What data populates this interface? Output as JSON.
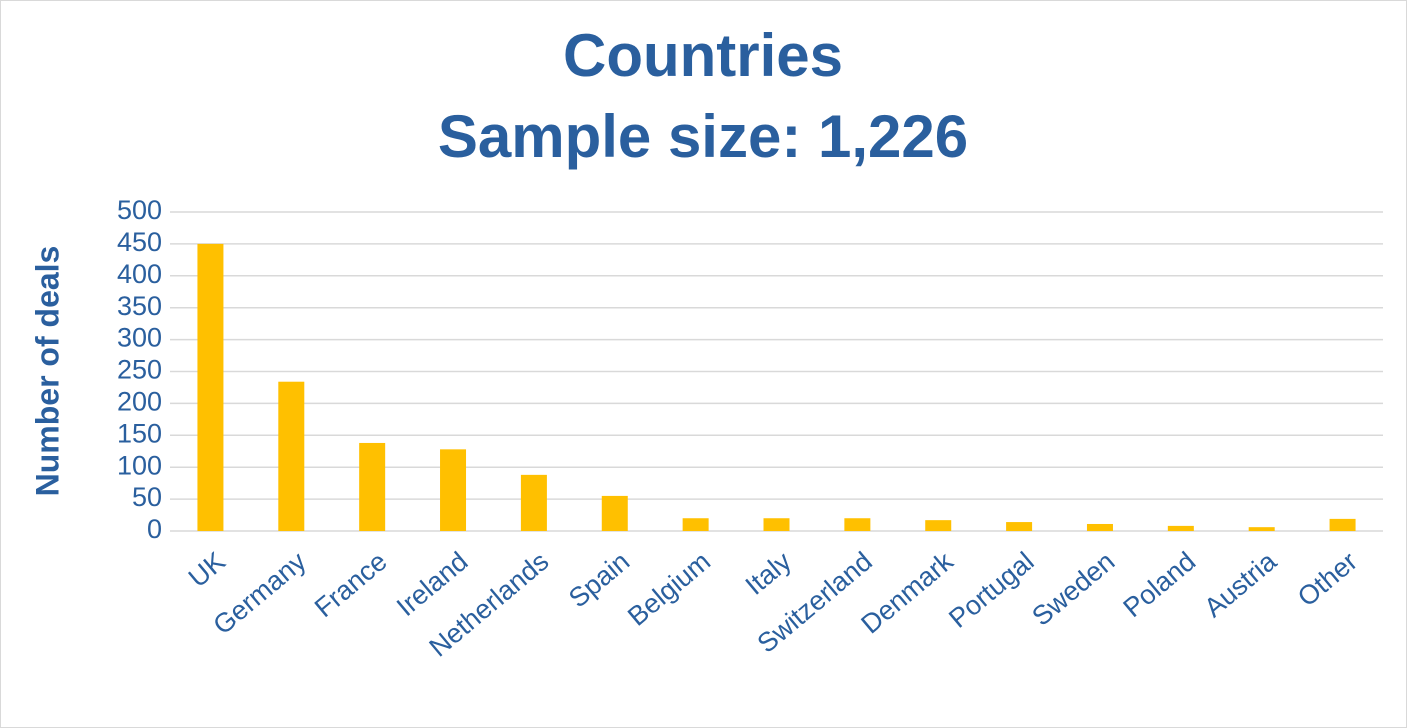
{
  "chart_data": {
    "type": "bar",
    "title": "Countries",
    "subtitle": "Sample size: 1,226",
    "y_axis_label": "Number of deals",
    "categories": [
      "UK",
      "Germany",
      "France",
      "Ireland",
      "Netherlands",
      "Spain",
      "Belgium",
      "Italy",
      "Switzerland",
      "Denmark",
      "Portugal",
      "Sweden",
      "Poland",
      "Austria",
      "Other"
    ],
    "values": [
      450,
      234,
      138,
      128,
      88,
      55,
      20,
      20,
      20,
      17,
      14,
      11,
      8,
      6,
      19
    ],
    "color": "#ffc000",
    "ylim": [
      0,
      500
    ],
    "yticks": [
      0,
      50,
      100,
      150,
      200,
      250,
      300,
      350,
      400,
      450,
      500
    ],
    "grid": true
  }
}
